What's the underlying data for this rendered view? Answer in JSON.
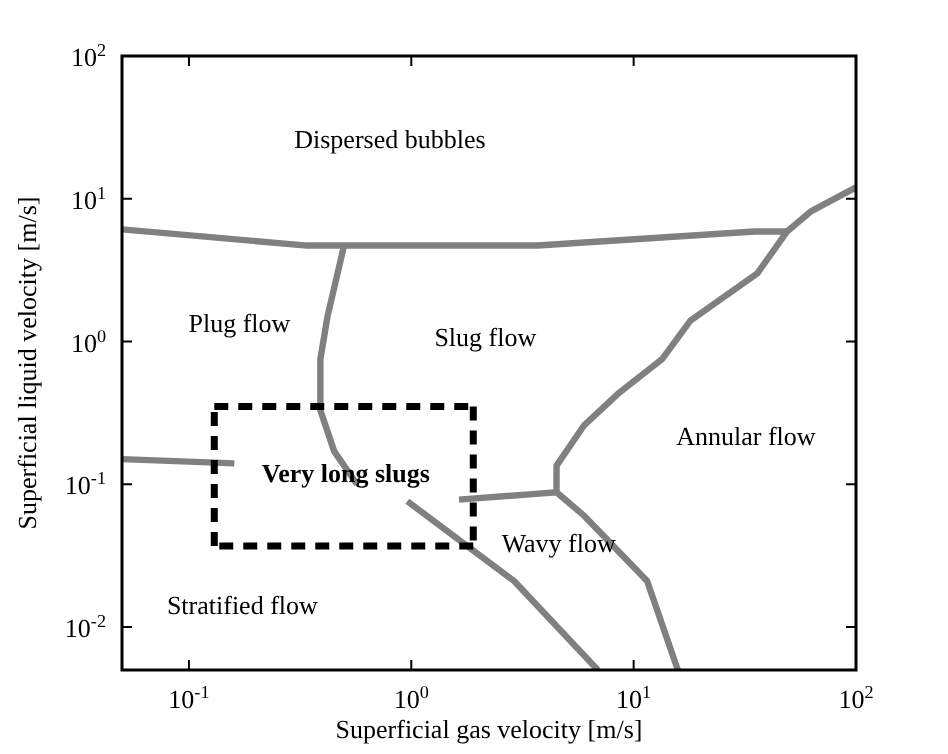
{
  "chart_data": {
    "type": "line",
    "xlabel": "Superficial gas velocity [m/s]",
    "ylabel": "Superficial liquid velocity [m/s]",
    "log": "xy",
    "xlim": [
      0.05,
      100
    ],
    "ylim": [
      0.005,
      100
    ],
    "xticks": [
      {
        "value": 0.1,
        "label": "10$^{-1}$"
      },
      {
        "value": 1,
        "label": "10$^{0}$"
      },
      {
        "value": 10,
        "label": "10$^{1}$"
      },
      {
        "value": 100,
        "label": "10$^{2}$"
      }
    ],
    "yticks": [
      {
        "value": 0.01,
        "label": "10$^{-2}$"
      },
      {
        "value": 0.1,
        "label": "10$^{-1}$"
      },
      {
        "value": 1,
        "label": "10$^{0}$"
      },
      {
        "value": 10,
        "label": "10$^{1}$"
      },
      {
        "value": 100,
        "label": "10$^{2}$"
      }
    ],
    "grid": false,
    "line_style": "solid",
    "series": [
      {
        "color": "#808080",
        "x": [
          0.05,
          0.34,
          3.7,
          35,
          49
        ],
        "values": [
          6.1,
          4.7,
          4.7,
          5.9,
          5.9
        ]
      },
      {
        "color": "#808080",
        "x": [
          0.5,
          0.42,
          0.39,
          0.39,
          0.45,
          0.57,
          0.7,
          0.96,
          2.9,
          6.9
        ],
        "values": [
          4.8,
          1.5,
          0.75,
          0.33,
          0.17,
          0.1,
          null,
          0.076,
          0.021,
          0.005
        ]
      },
      {
        "color": "#808080",
        "x": [
          0.05,
          0.16
        ],
        "values": [
          0.15,
          0.14
        ]
      },
      {
        "color": "#808080",
        "x": [
          1.64,
          3.4,
          4.5,
          6.0,
          11.5,
          15.8
        ],
        "values": [
          0.078,
          0.085,
          0.088,
          0.06,
          0.021,
          0.005
        ]
      },
      {
        "color": "#808080",
        "x": [
          4.5,
          4.5,
          6.0,
          8.5,
          13.4,
          18,
          36,
          49,
          63,
          100
        ],
        "values": [
          0.088,
          0.135,
          0.26,
          0.43,
          0.75,
          1.4,
          3.0,
          5.9,
          8.2,
          12
        ]
      },
      {
        "color": "#000000",
        "line_style": "dashed",
        "x": [
          0.13,
          1.9,
          1.9,
          0.13,
          0.13
        ],
        "values": [
          0.35,
          0.35,
          0.037,
          0.037,
          0.35
        ]
      }
    ],
    "annotations": [
      "Dispersed bubbles",
      "Plug flow",
      "Slug flow",
      "Annular flow",
      "Very long slugs",
      "Wavy flow",
      "Stratified flow"
    ]
  }
}
